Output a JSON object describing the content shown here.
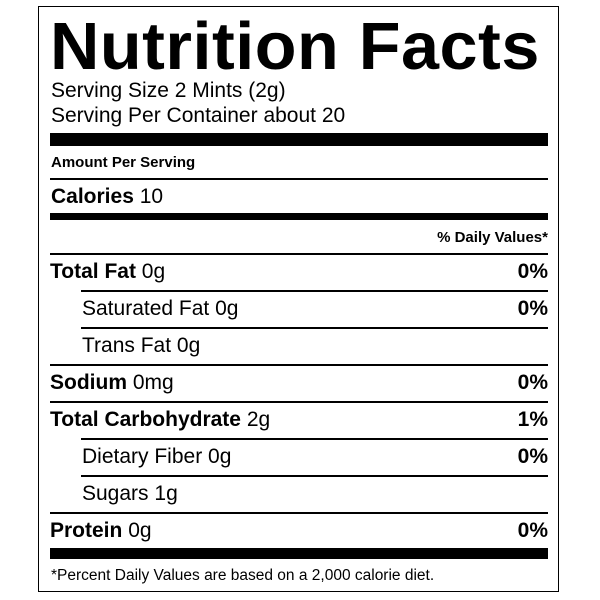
{
  "title": "Nutrition Facts",
  "serving_size": "Serving Size 2 Mints  (2g)",
  "servings_per_container": "Serving Per Container about 20",
  "amount_per_serving": "Amount Per Serving",
  "calories": {
    "label": "Calories",
    "value": "10"
  },
  "daily_values_header": "% Daily Values*",
  "nutrients": [
    {
      "label": "Total Fat",
      "amount": "0g",
      "dv": "0%"
    },
    {
      "label": "Saturated Fat",
      "amount": "0g",
      "dv": "0%"
    },
    {
      "label": "Trans Fat",
      "amount": "0g",
      "dv": ""
    },
    {
      "label": "Sodium",
      "amount": "0mg",
      "dv": "0%"
    },
    {
      "label": "Total Carbohydrate",
      "amount": "2g",
      "dv": "1%"
    },
    {
      "label": "Dietary Fiber",
      "amount": "0g",
      "dv": "0%"
    },
    {
      "label": "Sugars",
      "amount": "1g",
      "dv": ""
    },
    {
      "label": "Protein",
      "amount": "0g",
      "dv": "0%"
    }
  ],
  "footnote": "*Percent Daily Values are based on a 2,000 calorie diet."
}
